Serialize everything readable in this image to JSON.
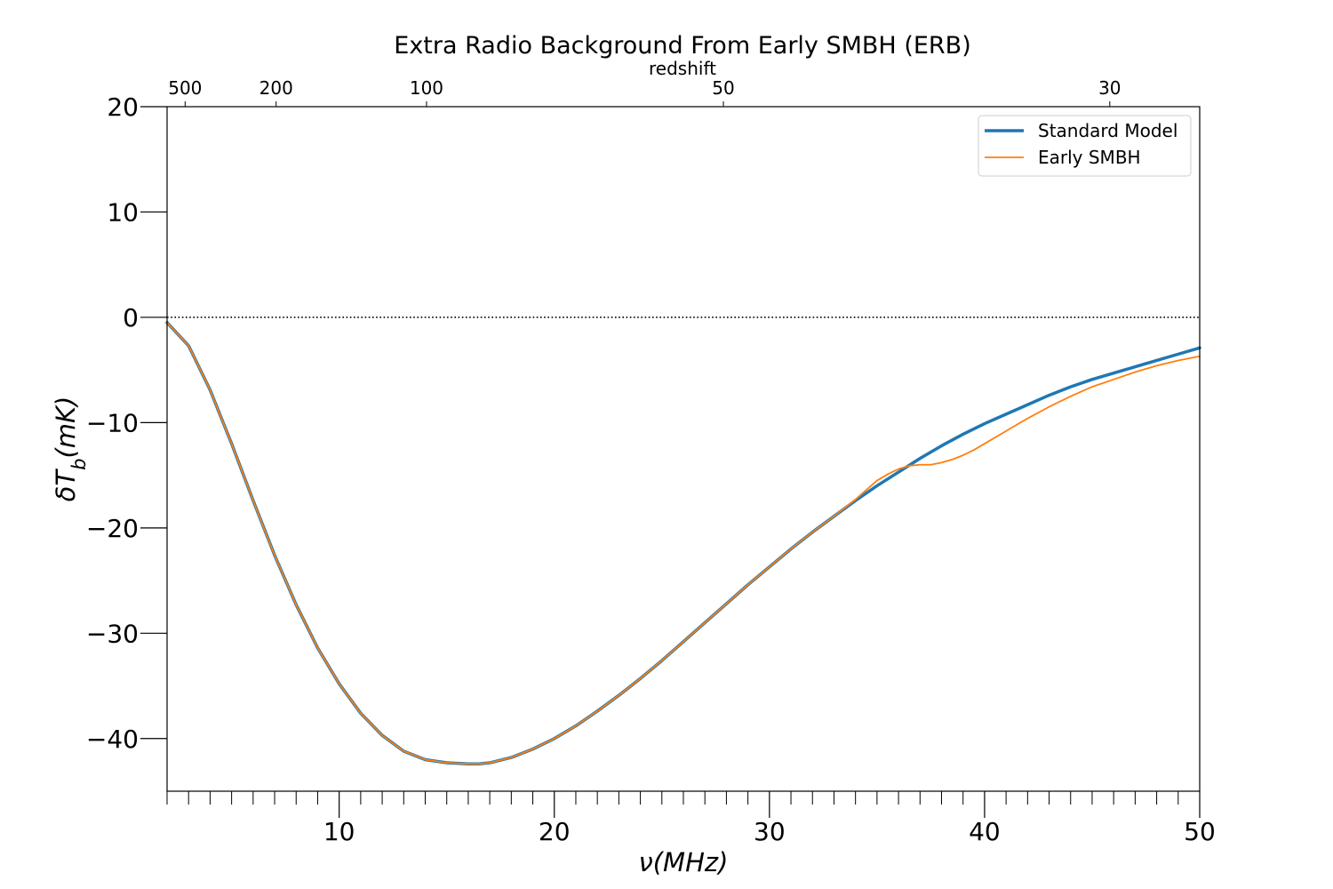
{
  "chart_data": {
    "type": "line",
    "title": "Extra Radio Background From Early SMBH (ERB)",
    "xlabel": "ν(MHz)",
    "ylabel": "δT_b(mK)",
    "top_xlabel": "redshift",
    "xlim": [
      2,
      50
    ],
    "ylim": [
      -45,
      20
    ],
    "x_ticks": [
      10,
      20,
      30,
      40,
      50
    ],
    "y_ticks": [
      20,
      10,
      0,
      -10,
      -20,
      -30,
      -40
    ],
    "top_ticks": [
      {
        "label": "500",
        "freq": 2.84
      },
      {
        "label": "200",
        "freq": 7.07
      },
      {
        "label": "100",
        "freq": 14.06
      },
      {
        "label": "50",
        "freq": 27.86
      },
      {
        "label": "30",
        "freq": 45.82
      }
    ],
    "zero_line": {
      "y": 0,
      "style": "dotted",
      "color": "#000000"
    },
    "legend_position": "top-right",
    "series": [
      {
        "name": "Standard Model",
        "color": "#1f77b4",
        "x": [
          2,
          3,
          4,
          5,
          6,
          7,
          8,
          9,
          10,
          11,
          12,
          13,
          14,
          15,
          16,
          16.5,
          17,
          18,
          19,
          20,
          21,
          22,
          23,
          24,
          25,
          26,
          27,
          28,
          29,
          30,
          31,
          32,
          33,
          34,
          35,
          36,
          37,
          38,
          39,
          40,
          41,
          42,
          43,
          44,
          45,
          46,
          47,
          48,
          49,
          50
        ],
        "y": [
          -0.5,
          -2.7,
          -6.9,
          -12.0,
          -17.4,
          -22.6,
          -27.3,
          -31.4,
          -34.8,
          -37.6,
          -39.7,
          -41.2,
          -42.0,
          -42.3,
          -42.4,
          -42.4,
          -42.3,
          -41.8,
          -41.0,
          -40.0,
          -38.8,
          -37.4,
          -35.9,
          -34.3,
          -32.6,
          -30.8,
          -29.0,
          -27.2,
          -25.4,
          -23.7,
          -22.0,
          -20.4,
          -18.9,
          -17.4,
          -16.0,
          -14.7,
          -13.4,
          -12.2,
          -11.1,
          -10.1,
          -9.2,
          -8.3,
          -7.4,
          -6.6,
          -5.9,
          -5.3,
          -4.7,
          -4.1,
          -3.5,
          -2.9
        ]
      },
      {
        "name": "Early SMBH",
        "color": "#ff7f0e",
        "x": [
          2,
          3,
          4,
          5,
          6,
          7,
          8,
          9,
          10,
          11,
          12,
          13,
          14,
          15,
          16,
          16.5,
          17,
          18,
          19,
          20,
          21,
          22,
          23,
          24,
          25,
          26,
          27,
          28,
          29,
          30,
          31,
          32,
          33,
          33.5,
          34,
          34.5,
          35,
          35.5,
          36,
          36.5,
          37,
          37.5,
          38,
          38.5,
          39,
          39.5,
          40,
          41,
          42,
          43,
          44,
          45,
          46,
          47,
          48,
          49,
          50
        ],
        "y": [
          -0.5,
          -2.7,
          -6.9,
          -12.0,
          -17.4,
          -22.6,
          -27.3,
          -31.4,
          -34.8,
          -37.6,
          -39.7,
          -41.2,
          -42.0,
          -42.3,
          -42.4,
          -42.4,
          -42.3,
          -41.8,
          -41.0,
          -40.0,
          -38.8,
          -37.4,
          -35.9,
          -34.3,
          -32.6,
          -30.8,
          -29.0,
          -27.2,
          -25.4,
          -23.7,
          -22.0,
          -20.4,
          -18.9,
          -18.1,
          -17.3,
          -16.4,
          -15.5,
          -14.9,
          -14.4,
          -14.1,
          -14.0,
          -14.0,
          -13.8,
          -13.5,
          -13.1,
          -12.6,
          -12.0,
          -10.8,
          -9.6,
          -8.5,
          -7.5,
          -6.6,
          -5.9,
          -5.2,
          -4.6,
          -4.1,
          -3.7
        ]
      }
    ]
  }
}
